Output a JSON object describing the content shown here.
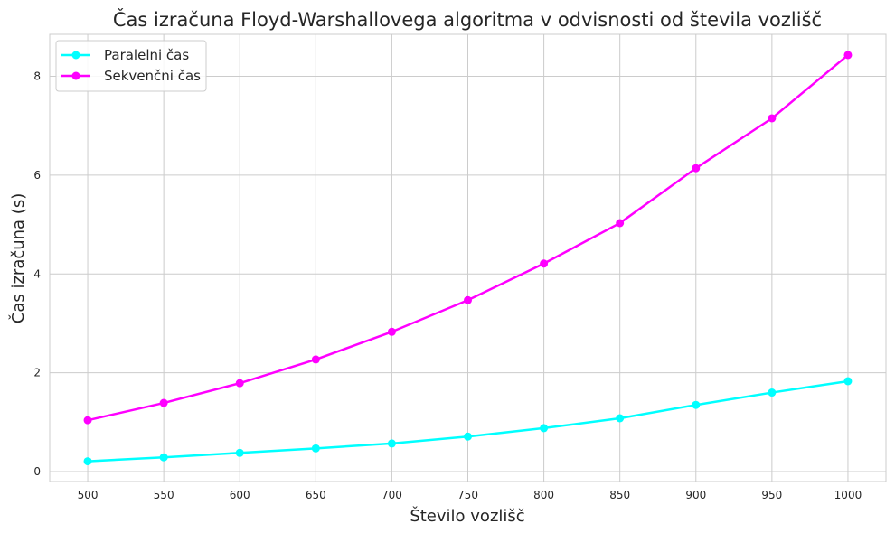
{
  "chart_data": {
    "type": "line",
    "title": "Čas izračuna Floyd-Warshallovega algoritma v odvisnosti od števila vozlišč",
    "xlabel": "Število vozlišč",
    "ylabel": "Čas izračuna (s)",
    "x": [
      500,
      550,
      600,
      650,
      700,
      750,
      800,
      850,
      900,
      950,
      1000
    ],
    "x_tick_labels": [
      "500",
      "550",
      "600",
      "650",
      "700",
      "750",
      "800",
      "850",
      "900",
      "950",
      "1000"
    ],
    "y_ticks": [
      0,
      2,
      4,
      6,
      8
    ],
    "y_tick_labels": [
      "0",
      "2",
      "4",
      "6",
      "8"
    ],
    "xlim": [
      475,
      1025
    ],
    "ylim": [
      -0.2,
      8.85
    ],
    "grid": true,
    "legend_position": "top-left",
    "series": [
      {
        "name": "Paralelni čas",
        "color": "#00ffff",
        "marker": "circle",
        "values": [
          0.21,
          0.29,
          0.38,
          0.47,
          0.57,
          0.71,
          0.88,
          1.08,
          1.35,
          1.6,
          1.83
        ]
      },
      {
        "name": "Sekvenčni čas",
        "color": "#ff00ff",
        "marker": "circle",
        "values": [
          1.04,
          1.39,
          1.79,
          2.27,
          2.83,
          3.47,
          4.21,
          5.03,
          6.14,
          7.15,
          8.43
        ]
      }
    ]
  }
}
